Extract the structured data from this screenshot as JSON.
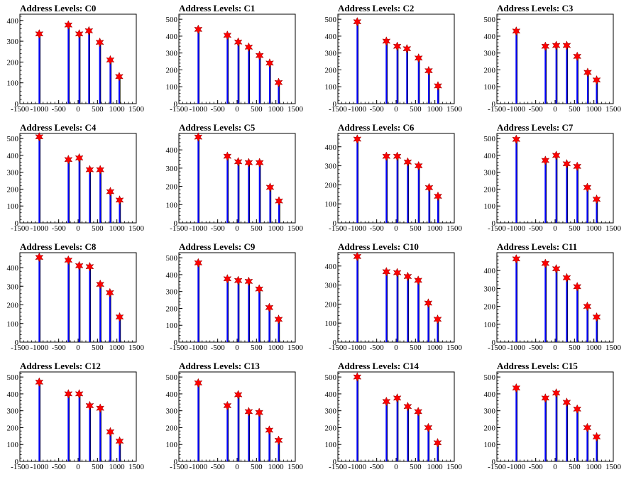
{
  "figure": {
    "title_prefix": "Address Levels: ",
    "colors": {
      "frame": "#000000",
      "histogram_outline": "#000000",
      "histogram_fill": "#0000ff",
      "marker": "#ff0000"
    }
  },
  "chart_data": [
    {
      "type": "bar",
      "title": "Address Levels: C0",
      "x_ticks": [
        -1500,
        -1000,
        -500,
        0,
        500,
        1000,
        1500
      ],
      "xlim": [
        -1500,
        1500
      ],
      "ylim": [
        0,
        430
      ],
      "y_ticks": [
        0,
        100,
        200,
        300,
        400
      ],
      "peaks": [
        {
          "x": -1000,
          "y": 335
        },
        {
          "x": -250,
          "y": 378
        },
        {
          "x": 30,
          "y": 335
        },
        {
          "x": 280,
          "y": 350
        },
        {
          "x": 560,
          "y": 295
        },
        {
          "x": 830,
          "y": 210
        },
        {
          "x": 1060,
          "y": 130
        }
      ]
    },
    {
      "type": "bar",
      "title": "Address Levels: C1",
      "x_ticks": [
        -1500,
        -1000,
        -500,
        0,
        500,
        1000,
        1500
      ],
      "xlim": [
        -1500,
        1500
      ],
      "ylim": [
        0,
        530
      ],
      "y_ticks": [
        0,
        100,
        200,
        300,
        400,
        500
      ],
      "peaks": [
        {
          "x": -1000,
          "y": 440
        },
        {
          "x": -250,
          "y": 405
        },
        {
          "x": 30,
          "y": 365
        },
        {
          "x": 300,
          "y": 335
        },
        {
          "x": 580,
          "y": 285
        },
        {
          "x": 840,
          "y": 240
        },
        {
          "x": 1070,
          "y": 125
        }
      ]
    },
    {
      "type": "bar",
      "title": "Address Levels: C2",
      "x_ticks": [
        -1500,
        -1000,
        -500,
        0,
        500,
        1000,
        1500
      ],
      "xlim": [
        -1500,
        1500
      ],
      "ylim": [
        0,
        530
      ],
      "y_ticks": [
        0,
        100,
        200,
        300,
        400,
        500
      ],
      "peaks": [
        {
          "x": -1000,
          "y": 485
        },
        {
          "x": -250,
          "y": 370
        },
        {
          "x": 30,
          "y": 340
        },
        {
          "x": 280,
          "y": 325
        },
        {
          "x": 580,
          "y": 270
        },
        {
          "x": 840,
          "y": 195
        },
        {
          "x": 1080,
          "y": 105
        }
      ]
    },
    {
      "type": "bar",
      "title": "Address Levels: C3",
      "x_ticks": [
        -1500,
        -1000,
        -500,
        0,
        500,
        1000,
        1500
      ],
      "xlim": [
        -1500,
        1500
      ],
      "ylim": [
        0,
        530
      ],
      "y_ticks": [
        0,
        100,
        200,
        300,
        400,
        500
      ],
      "peaks": [
        {
          "x": -1000,
          "y": 430
        },
        {
          "x": -250,
          "y": 340
        },
        {
          "x": 30,
          "y": 345
        },
        {
          "x": 300,
          "y": 345
        },
        {
          "x": 570,
          "y": 280
        },
        {
          "x": 840,
          "y": 185
        },
        {
          "x": 1070,
          "y": 140
        }
      ]
    },
    {
      "type": "bar",
      "title": "Address Levels: C4",
      "x_ticks": [
        -1500,
        -1000,
        -500,
        0,
        500,
        1000,
        1500
      ],
      "xlim": [
        -1500,
        1500
      ],
      "ylim": [
        0,
        530
      ],
      "y_ticks": [
        0,
        100,
        200,
        300,
        400,
        500
      ],
      "peaks": [
        {
          "x": -1000,
          "y": 510
        },
        {
          "x": -250,
          "y": 375
        },
        {
          "x": 30,
          "y": 385
        },
        {
          "x": 300,
          "y": 315
        },
        {
          "x": 570,
          "y": 315
        },
        {
          "x": 830,
          "y": 185
        },
        {
          "x": 1070,
          "y": 135
        }
      ]
    },
    {
      "type": "bar",
      "title": "Address Levels: C5",
      "x_ticks": [
        -1500,
        -1000,
        -500,
        0,
        500,
        1000,
        1500
      ],
      "xlim": [
        -1500,
        1500
      ],
      "ylim": [
        0,
        490
      ],
      "y_ticks": [
        0,
        100,
        200,
        300,
        400
      ],
      "peaks": [
        {
          "x": -1000,
          "y": 470
        },
        {
          "x": -250,
          "y": 365
        },
        {
          "x": 30,
          "y": 335
        },
        {
          "x": 300,
          "y": 330
        },
        {
          "x": 580,
          "y": 330
        },
        {
          "x": 850,
          "y": 195
        },
        {
          "x": 1080,
          "y": 120
        }
      ]
    },
    {
      "type": "bar",
      "title": "Address Levels: C6",
      "x_ticks": [
        -1500,
        -1000,
        -500,
        0,
        500,
        1000,
        1500
      ],
      "xlim": [
        -1500,
        1500
      ],
      "ylim": [
        0,
        470
      ],
      "y_ticks": [
        0,
        100,
        200,
        300,
        400
      ],
      "peaks": [
        {
          "x": -1000,
          "y": 440
        },
        {
          "x": -250,
          "y": 350
        },
        {
          "x": 30,
          "y": 350
        },
        {
          "x": 300,
          "y": 320
        },
        {
          "x": 580,
          "y": 300
        },
        {
          "x": 850,
          "y": 185
        },
        {
          "x": 1080,
          "y": 140
        }
      ]
    },
    {
      "type": "bar",
      "title": "Address Levels: C7",
      "x_ticks": [
        -1500,
        -1000,
        -500,
        0,
        500,
        1000,
        1500
      ],
      "xlim": [
        -1500,
        1500
      ],
      "ylim": [
        0,
        530
      ],
      "y_ticks": [
        0,
        100,
        200,
        300,
        400,
        500
      ],
      "peaks": [
        {
          "x": -1000,
          "y": 495
        },
        {
          "x": -250,
          "y": 370
        },
        {
          "x": 30,
          "y": 400
        },
        {
          "x": 300,
          "y": 350
        },
        {
          "x": 570,
          "y": 335
        },
        {
          "x": 830,
          "y": 210
        },
        {
          "x": 1070,
          "y": 140
        }
      ]
    },
    {
      "type": "bar",
      "title": "Address Levels: C8",
      "x_ticks": [
        -1500,
        -1000,
        -500,
        0,
        500,
        1000,
        1500
      ],
      "xlim": [
        -1500,
        1500
      ],
      "ylim": [
        0,
        480
      ],
      "y_ticks": [
        0,
        100,
        200,
        300,
        400
      ],
      "peaks": [
        {
          "x": -1000,
          "y": 455
        },
        {
          "x": -250,
          "y": 440
        },
        {
          "x": 30,
          "y": 410
        },
        {
          "x": 300,
          "y": 405
        },
        {
          "x": 570,
          "y": 310
        },
        {
          "x": 820,
          "y": 265
        },
        {
          "x": 1070,
          "y": 135
        }
      ]
    },
    {
      "type": "bar",
      "title": "Address Levels: C9",
      "x_ticks": [
        -1500,
        -1000,
        -500,
        0,
        500,
        1000,
        1500
      ],
      "xlim": [
        -1500,
        1500
      ],
      "ylim": [
        0,
        530
      ],
      "y_ticks": [
        0,
        100,
        200,
        300,
        400,
        500
      ],
      "peaks": [
        {
          "x": -1000,
          "y": 470
        },
        {
          "x": -250,
          "y": 375
        },
        {
          "x": 30,
          "y": 365
        },
        {
          "x": 300,
          "y": 360
        },
        {
          "x": 570,
          "y": 315
        },
        {
          "x": 830,
          "y": 205
        },
        {
          "x": 1070,
          "y": 135
        }
      ]
    },
    {
      "type": "bar",
      "title": "Address Levels: C10",
      "x_ticks": [
        -1500,
        -1000,
        -500,
        0,
        500,
        1000,
        1500
      ],
      "xlim": [
        -1500,
        1500
      ],
      "ylim": [
        0,
        470
      ],
      "y_ticks": [
        0,
        100,
        200,
        300,
        400
      ],
      "peaks": [
        {
          "x": -1000,
          "y": 450
        },
        {
          "x": -250,
          "y": 370
        },
        {
          "x": 30,
          "y": 365
        },
        {
          "x": 300,
          "y": 345
        },
        {
          "x": 570,
          "y": 325
        },
        {
          "x": 830,
          "y": 205
        },
        {
          "x": 1070,
          "y": 120
        }
      ]
    },
    {
      "type": "bar",
      "title": "Address Levels: C11",
      "x_ticks": [
        -1500,
        -1000,
        -500,
        0,
        500,
        1000,
        1500
      ],
      "xlim": [
        -1500,
        1500
      ],
      "ylim": [
        0,
        500
      ],
      "y_ticks": [
        0,
        100,
        200,
        300,
        400
      ],
      "peaks": [
        {
          "x": -1000,
          "y": 465
        },
        {
          "x": -250,
          "y": 440
        },
        {
          "x": 30,
          "y": 410
        },
        {
          "x": 300,
          "y": 360
        },
        {
          "x": 570,
          "y": 310
        },
        {
          "x": 830,
          "y": 200
        },
        {
          "x": 1070,
          "y": 140
        }
      ]
    },
    {
      "type": "bar",
      "title": "Address Levels: C12",
      "x_ticks": [
        -1500,
        -1000,
        -500,
        0,
        500,
        1000,
        1500
      ],
      "xlim": [
        -1500,
        1500
      ],
      "ylim": [
        0,
        530
      ],
      "y_ticks": [
        0,
        100,
        200,
        300,
        400,
        500
      ],
      "peaks": [
        {
          "x": -1000,
          "y": 470
        },
        {
          "x": -250,
          "y": 400
        },
        {
          "x": 30,
          "y": 400
        },
        {
          "x": 300,
          "y": 330
        },
        {
          "x": 570,
          "y": 315
        },
        {
          "x": 830,
          "y": 175
        },
        {
          "x": 1070,
          "y": 120
        }
      ]
    },
    {
      "type": "bar",
      "title": "Address Levels: C13",
      "x_ticks": [
        -1500,
        -1000,
        -500,
        0,
        500,
        1000,
        1500
      ],
      "xlim": [
        -1500,
        1500
      ],
      "ylim": [
        0,
        530
      ],
      "y_ticks": [
        0,
        100,
        200,
        300,
        400,
        500
      ],
      "peaks": [
        {
          "x": -1000,
          "y": 465
        },
        {
          "x": -250,
          "y": 330
        },
        {
          "x": 30,
          "y": 395
        },
        {
          "x": 300,
          "y": 295
        },
        {
          "x": 570,
          "y": 290
        },
        {
          "x": 830,
          "y": 185
        },
        {
          "x": 1070,
          "y": 125
        }
      ]
    },
    {
      "type": "bar",
      "title": "Address Levels: C14",
      "x_ticks": [
        -1500,
        -1000,
        -500,
        0,
        500,
        1000,
        1500
      ],
      "xlim": [
        -1500,
        1500
      ],
      "ylim": [
        0,
        530
      ],
      "y_ticks": [
        0,
        100,
        200,
        300,
        400,
        500
      ],
      "peaks": [
        {
          "x": -1000,
          "y": 500
        },
        {
          "x": -250,
          "y": 355
        },
        {
          "x": 30,
          "y": 375
        },
        {
          "x": 300,
          "y": 325
        },
        {
          "x": 570,
          "y": 295
        },
        {
          "x": 830,
          "y": 200
        },
        {
          "x": 1070,
          "y": 110
        }
      ]
    },
    {
      "type": "bar",
      "title": "Address Levels: C15",
      "x_ticks": [
        -1500,
        -1000,
        -500,
        0,
        500,
        1000,
        1500
      ],
      "xlim": [
        -1500,
        1500
      ],
      "ylim": [
        0,
        530
      ],
      "y_ticks": [
        0,
        100,
        200,
        300,
        400,
        500
      ],
      "peaks": [
        {
          "x": -1000,
          "y": 435
        },
        {
          "x": -250,
          "y": 375
        },
        {
          "x": 30,
          "y": 405
        },
        {
          "x": 300,
          "y": 350
        },
        {
          "x": 570,
          "y": 310
        },
        {
          "x": 830,
          "y": 200
        },
        {
          "x": 1070,
          "y": 145
        }
      ]
    }
  ]
}
